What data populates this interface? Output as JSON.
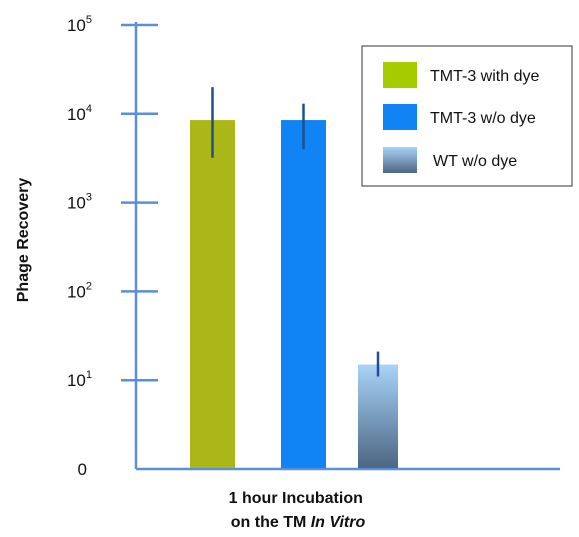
{
  "chart_data": {
    "type": "bar",
    "title": "",
    "ylabel": "Phage Recovery",
    "xlabel_line1": "1 hour Incubation",
    "xlabel_line2_prefix": "on the TM ",
    "xlabel_line2_italic": "In Vitro",
    "yscale": "log",
    "ylim": [
      1,
      100000
    ],
    "y_ticks": [
      {
        "base": "0",
        "exp": ""
      },
      {
        "base": "10",
        "exp": "1"
      },
      {
        "base": "10",
        "exp": "2"
      },
      {
        "base": "10",
        "exp": "3"
      },
      {
        "base": "10",
        "exp": "4"
      },
      {
        "base": "10",
        "exp": "5"
      }
    ],
    "legend_position": "top-right",
    "series": [
      {
        "name": "TMT-3 with dye",
        "value": 8500,
        "err_low": 3200,
        "err_high": 20000,
        "color": "#aab716",
        "fill": "solid",
        "swatch_color": "#a5cc00"
      },
      {
        "name": "TMT-3 w/o dye",
        "value": 8500,
        "err_low": 4000,
        "err_high": 13000,
        "color": "#1083f5",
        "fill": "solid",
        "swatch_color": "#1083f5"
      },
      {
        "name": "WT w/o dye",
        "value": 15,
        "err_low": 11,
        "err_high": 21,
        "color_top": "#a9d3f8",
        "color_bottom": "#4c6682",
        "fill": "gradient",
        "swatch_color": "#a9d3f8"
      }
    ],
    "axis_color": "#5b8fd8",
    "error_bar_color": "#1f4f8f"
  }
}
